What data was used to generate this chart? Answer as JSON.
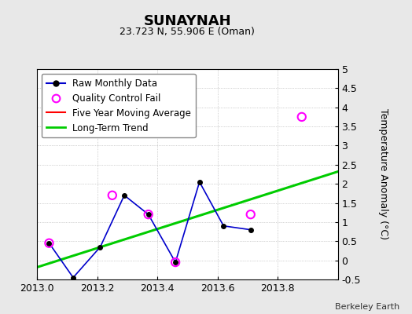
{
  "title": "SUNAYNAH",
  "subtitle": "23.723 N, 55.906 E (Oman)",
  "ylabel": "Temperature Anomaly (°C)",
  "credit": "Berkeley Earth",
  "xlim": [
    2013.0,
    2014.0
  ],
  "ylim": [
    -0.5,
    5.0
  ],
  "xticks": [
    2013.0,
    2013.2,
    2013.4,
    2013.6,
    2013.8
  ],
  "yticks": [
    -0.5,
    0,
    0.5,
    1,
    1.5,
    2,
    2.5,
    3,
    3.5,
    4,
    4.5,
    5
  ],
  "raw_x": [
    2013.04,
    2013.12,
    2013.21,
    2013.29,
    2013.37,
    2013.46,
    2013.54,
    2013.62,
    2013.71
  ],
  "raw_y": [
    0.45,
    -0.45,
    0.35,
    1.7,
    1.2,
    -0.05,
    2.05,
    0.9,
    0.8
  ],
  "qc_fail_x": [
    2013.04,
    2013.25,
    2013.37,
    2013.46,
    2013.71,
    2013.88
  ],
  "qc_fail_y": [
    0.45,
    1.7,
    1.2,
    -0.05,
    1.2,
    3.75
  ],
  "trend_x": [
    2013.0,
    2014.0
  ],
  "trend_y": [
    -0.18,
    2.32
  ],
  "bg_color": "#e8e8e8",
  "plot_bg_color": "#ffffff",
  "raw_line_color": "#0000cc",
  "raw_marker_color": "#000000",
  "qc_color": "#ff00ff",
  "trend_color": "#00cc00",
  "mavg_color": "#ff0000",
  "grid_color": "#aaaaaa"
}
